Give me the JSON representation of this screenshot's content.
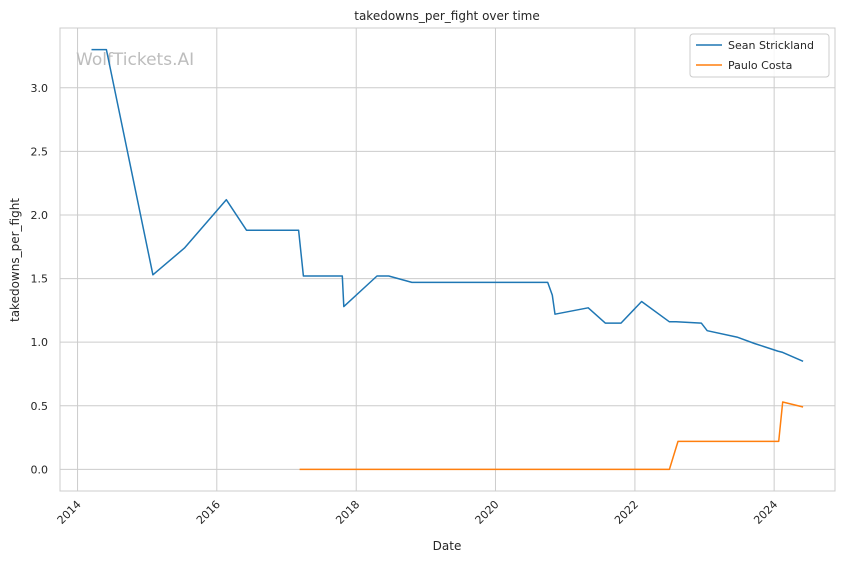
{
  "chart_data": {
    "type": "line",
    "title": "takedowns_per_fight over time",
    "xlabel": "Date",
    "ylabel": "takedowns_per_fight",
    "watermark": "WolfTickets.AI",
    "x_ticks": [
      "2014",
      "2016",
      "2018",
      "2020",
      "2022",
      "2024"
    ],
    "y_ticks": [
      "0.0",
      "0.5",
      "1.0",
      "1.5",
      "2.0",
      "2.5",
      "3.0"
    ],
    "xlim": [
      "2013-10-01",
      "2024-11-15"
    ],
    "ylim": [
      -0.17,
      3.47
    ],
    "grid": true,
    "legend_position": "top-right",
    "series": [
      {
        "name": "Sean Strickland",
        "color": "#1f77b4",
        "points": [
          [
            "2014-03-15",
            3.3
          ],
          [
            "2014-06-01",
            3.3
          ],
          [
            "2015-01-31",
            1.53
          ],
          [
            "2015-07-15",
            1.74
          ],
          [
            "2016-02-20",
            2.12
          ],
          [
            "2016-06-05",
            1.88
          ],
          [
            "2017-03-05",
            1.88
          ],
          [
            "2017-03-30",
            1.52
          ],
          [
            "2017-10-20",
            1.52
          ],
          [
            "2017-10-28",
            1.28
          ],
          [
            "2018-04-20",
            1.52
          ],
          [
            "2018-06-20",
            1.52
          ],
          [
            "2018-10-20",
            1.47
          ],
          [
            "2020-10-01",
            1.47
          ],
          [
            "2020-10-25",
            1.37
          ],
          [
            "2020-11-08",
            1.22
          ],
          [
            "2021-05-01",
            1.27
          ],
          [
            "2021-07-30",
            1.15
          ],
          [
            "2021-10-20",
            1.15
          ],
          [
            "2022-02-05",
            1.32
          ],
          [
            "2022-07-01",
            1.16
          ],
          [
            "2022-08-05",
            1.16
          ],
          [
            "2022-12-15",
            1.15
          ],
          [
            "2023-01-15",
            1.09
          ],
          [
            "2023-06-20",
            1.04
          ],
          [
            "2023-09-20",
            0.99
          ],
          [
            "2024-01-20",
            0.93
          ],
          [
            "2024-02-15",
            0.92
          ],
          [
            "2024-06-01",
            0.85
          ]
        ]
      },
      {
        "name": "Paulo Costa",
        "color": "#ff7f0e",
        "points": [
          [
            "2017-03-10",
            0.0
          ],
          [
            "2022-07-01",
            0.0
          ],
          [
            "2022-08-15",
            0.22
          ],
          [
            "2024-01-25",
            0.22
          ],
          [
            "2024-02-15",
            0.53
          ],
          [
            "2024-06-01",
            0.49
          ]
        ]
      }
    ]
  }
}
